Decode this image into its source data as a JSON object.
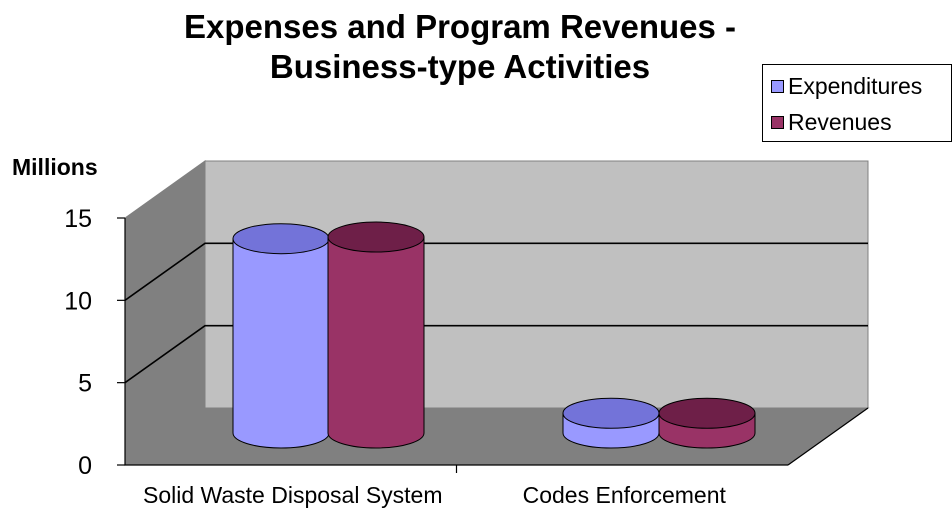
{
  "chart_data": {
    "type": "bar",
    "title_line1": "Expenses and Program Revenues -",
    "title_line2": "Business-type Activities",
    "ylabel": "Millions",
    "categories": [
      "Solid Waste Disposal System",
      "Codes Enforcement"
    ],
    "series": [
      {
        "name": "Expenditures",
        "values": [
          11.8,
          1.2
        ],
        "color": "#9999ff",
        "top_color": "#7373d9"
      },
      {
        "name": "Revenues",
        "values": [
          11.9,
          1.2
        ],
        "color": "#993366",
        "top_color": "#6e1f48"
      }
    ],
    "ylim": [
      0,
      15
    ],
    "yticks": [
      "0",
      "5",
      "10",
      "15"
    ],
    "grid": true,
    "legend_position": "top-right",
    "style": "3d-cylinder"
  }
}
